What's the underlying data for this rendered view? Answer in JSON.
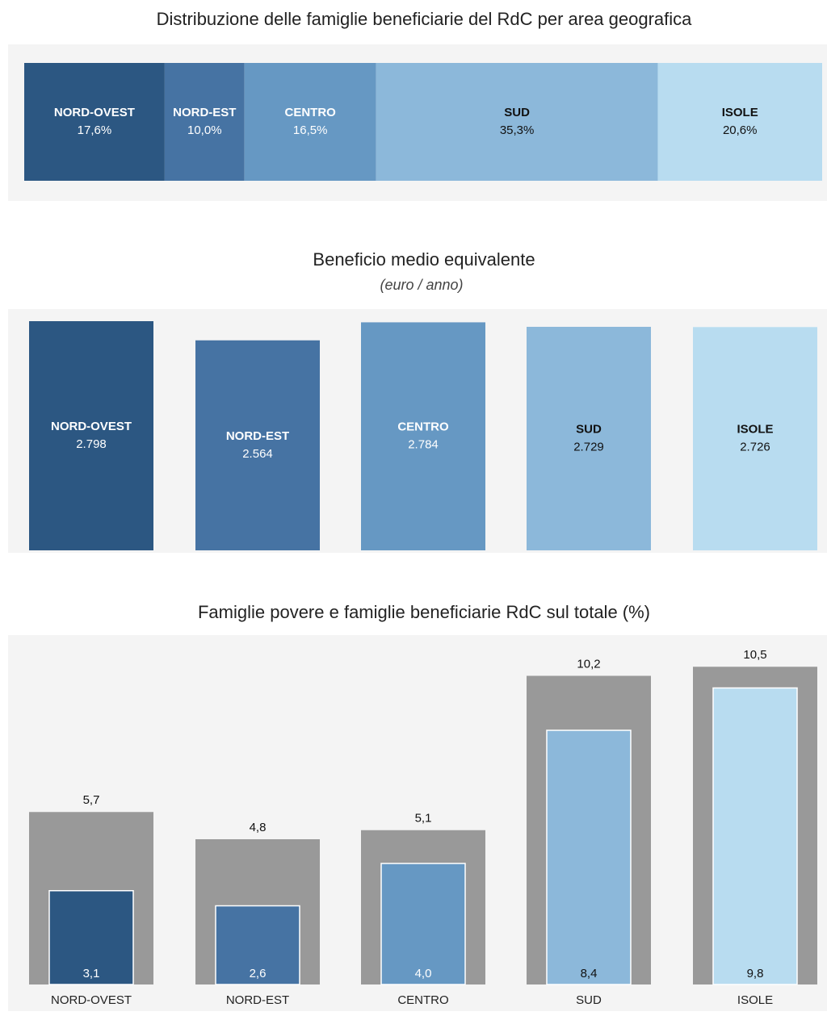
{
  "chart_data": [
    {
      "type": "hbar100",
      "title": "Distribuzione delle famiglie beneficiarie del RdC per area geografica",
      "categories": [
        "NORD-OVEST",
        "NORD-EST",
        "CENTRO",
        "SUD",
        "ISOLE"
      ],
      "values": [
        17.6,
        10.0,
        16.5,
        35.3,
        20.6
      ],
      "value_labels": [
        "17,6%",
        "10,0%",
        "16,5%",
        "35,3%",
        "20,6%"
      ],
      "colors": [
        "#2c5782",
        "#4673a3",
        "#6698c3",
        "#8cb8da",
        "#b8dcf0"
      ]
    },
    {
      "type": "bar",
      "title": "Beneficio medio equivalente",
      "subtitle": "(euro / anno)",
      "categories": [
        "NORD-OVEST",
        "NORD-EST",
        "CENTRO",
        "SUD",
        "ISOLE"
      ],
      "values": [
        2798,
        2564,
        2784,
        2729,
        2726
      ],
      "value_labels": [
        "2.798",
        "2.564",
        "2.784",
        "2.729",
        "2.726"
      ],
      "colors": [
        "#2c5782",
        "#4673a3",
        "#6698c3",
        "#8cb8da",
        "#b8dcf0"
      ]
    },
    {
      "type": "bullet",
      "title": "Famiglie povere e famiglie beneficiarie RdC sul totale (%)",
      "categories": [
        "NORD-OVEST",
        "NORD-EST",
        "CENTRO",
        "SUD",
        "ISOLE"
      ],
      "series": [
        {
          "color": "#999999",
          "values": [
            5.7,
            4.8,
            5.1,
            10.2,
            10.5
          ],
          "value_labels": [
            "5,7",
            "4,8",
            "5,1",
            "10,2",
            "10,5"
          ]
        },
        {
          "colors": [
            "#2c5782",
            "#4673a3",
            "#6698c3",
            "#8cb8da",
            "#b8dcf0"
          ],
          "values": [
            3.1,
            2.6,
            4.0,
            8.4,
            9.8
          ],
          "value_labels": [
            "3,1",
            "2,6",
            "4,0",
            "8,4",
            "9,8"
          ]
        }
      ]
    }
  ]
}
